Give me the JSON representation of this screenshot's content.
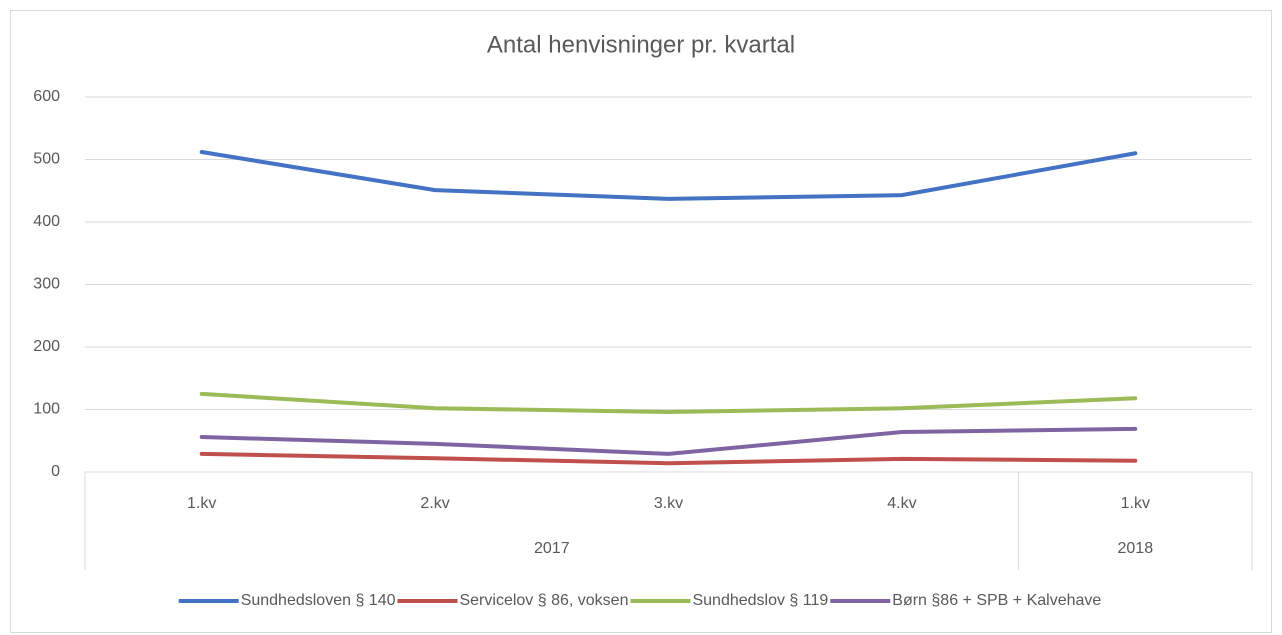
{
  "chart_data": {
    "type": "line",
    "title": "Antal henvisninger pr. kvartal",
    "groups": [
      {
        "name": "2017",
        "categories": [
          "1.kv",
          "2.kv",
          "3.kv",
          "4.kv"
        ]
      },
      {
        "name": "2018",
        "categories": [
          "1.kv"
        ]
      }
    ],
    "series": [
      {
        "name": "Sundhedsloven § 140",
        "color": "#4472c4",
        "values": [
          512,
          451,
          437,
          443,
          510
        ]
      },
      {
        "name": "Servicelov § 86, voksen",
        "color": "#c0504d",
        "values": [
          29,
          22,
          14,
          21,
          18
        ]
      },
      {
        "name": "Sundhedslov § 119",
        "color": "#9bbb59",
        "values": [
          125,
          102,
          96,
          102,
          118
        ]
      },
      {
        "name": "Børn §86 + SPB + Kalvehave",
        "color": "#8064a2",
        "values": [
          56,
          45,
          29,
          64,
          69
        ]
      }
    ],
    "ylim": [
      0,
      600
    ],
    "yticks": [
      0,
      100,
      200,
      300,
      400,
      500,
      600
    ],
    "grid": true,
    "legend": "bottom"
  }
}
